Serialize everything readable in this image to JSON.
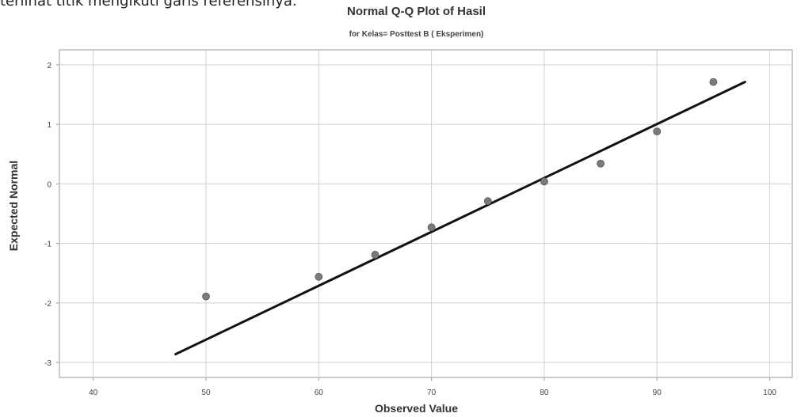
{
  "context_text": "terlihat titik mengikuti garis referensinya.",
  "chart_data": {
    "type": "scatter",
    "title": "Normal Q-Q Plot of Hasil",
    "subtitle": "for Kelas= Posttest B ( Eksperimen)",
    "xlabel": "Observed Value",
    "ylabel": "Expected Normal",
    "xlim": [
      37,
      102
    ],
    "ylim": [
      -3.25,
      2.25
    ],
    "x_ticks": [
      40,
      50,
      60,
      70,
      80,
      90,
      100
    ],
    "y_ticks": [
      2,
      1,
      0,
      -1,
      -2,
      -3
    ],
    "grid": true,
    "series": [
      {
        "values_x": [
          50,
          60,
          65,
          70,
          75,
          80,
          85,
          90,
          95
        ],
        "values_y": [
          -1.89,
          -1.56,
          -1.19,
          -0.73,
          -0.29,
          0.04,
          0.34,
          0.88,
          1.71
        ]
      }
    ],
    "reference_line": {
      "x": [
        47.3,
        97.8
      ],
      "y": [
        -2.86,
        1.71
      ]
    },
    "colors": {
      "points": "#7a7a7a",
      "line": "#111111",
      "grid": "#d0d0d0",
      "axis": "#999999"
    }
  }
}
